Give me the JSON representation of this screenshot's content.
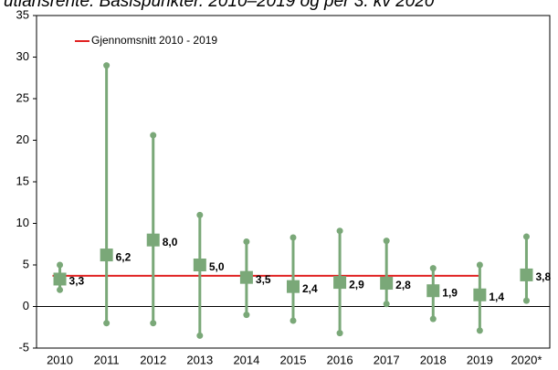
{
  "chart_data": {
    "type": "range",
    "title": "utlånsrente. Basispunkter. 2010–2019 og per 3. kv 2020",
    "categories": [
      "2010",
      "2011",
      "2012",
      "2013",
      "2014",
      "2015",
      "2016",
      "2017",
      "2018",
      "2019",
      "2020*"
    ],
    "values": [
      3.3,
      6.2,
      8.0,
      5.0,
      3.5,
      2.4,
      2.9,
      2.8,
      1.9,
      1.4,
      3.8
    ],
    "value_labels": [
      "3,3",
      "6,2",
      "8,0",
      "5,0",
      "3,5",
      "2,4",
      "2,9",
      "2,8",
      "1,9",
      "1,4",
      "3,8"
    ],
    "high": [
      5.0,
      29.0,
      20.6,
      11.0,
      7.8,
      8.3,
      9.1,
      7.9,
      4.6,
      5.0,
      8.4
    ],
    "low": [
      2.0,
      -2.0,
      -2.0,
      -3.5,
      -1.0,
      -1.7,
      -3.2,
      0.3,
      -1.5,
      -2.9,
      0.7
    ],
    "color": "#7aa878",
    "mean_line": {
      "name": "Gjennomsnitt 2010 - 2019",
      "value": 3.7,
      "color": "#e02020"
    },
    "ylim": [
      -5,
      35
    ],
    "yticks": [
      -5,
      0,
      5,
      10,
      15,
      20,
      25,
      30,
      35
    ],
    "legend": "upper left"
  }
}
